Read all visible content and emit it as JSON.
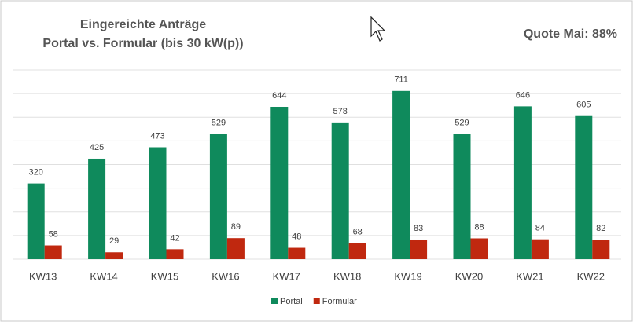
{
  "chart_data": {
    "type": "bar",
    "title": [
      "Eingereichte Anträge",
      "Portal vs. Formular (bis 30 kW(p))"
    ],
    "annotation": "Quote Mai: 88%",
    "categories": [
      "KW13",
      "KW14",
      "KW15",
      "KW16",
      "KW17",
      "KW18",
      "KW19",
      "KW20",
      "KW21",
      "KW22"
    ],
    "series": [
      {
        "name": "Portal",
        "color": "#0f8a5c",
        "values": [
          320,
          425,
          473,
          529,
          644,
          578,
          711,
          529,
          646,
          605
        ]
      },
      {
        "name": "Formular",
        "color": "#c0280f",
        "values": [
          58,
          29,
          42,
          89,
          48,
          68,
          83,
          88,
          84,
          82
        ]
      }
    ],
    "ylim": [
      0,
      800
    ],
    "yticks": [
      0,
      100,
      200,
      300,
      400,
      500,
      600,
      700,
      800
    ],
    "grid": true,
    "legend": "bottom"
  }
}
